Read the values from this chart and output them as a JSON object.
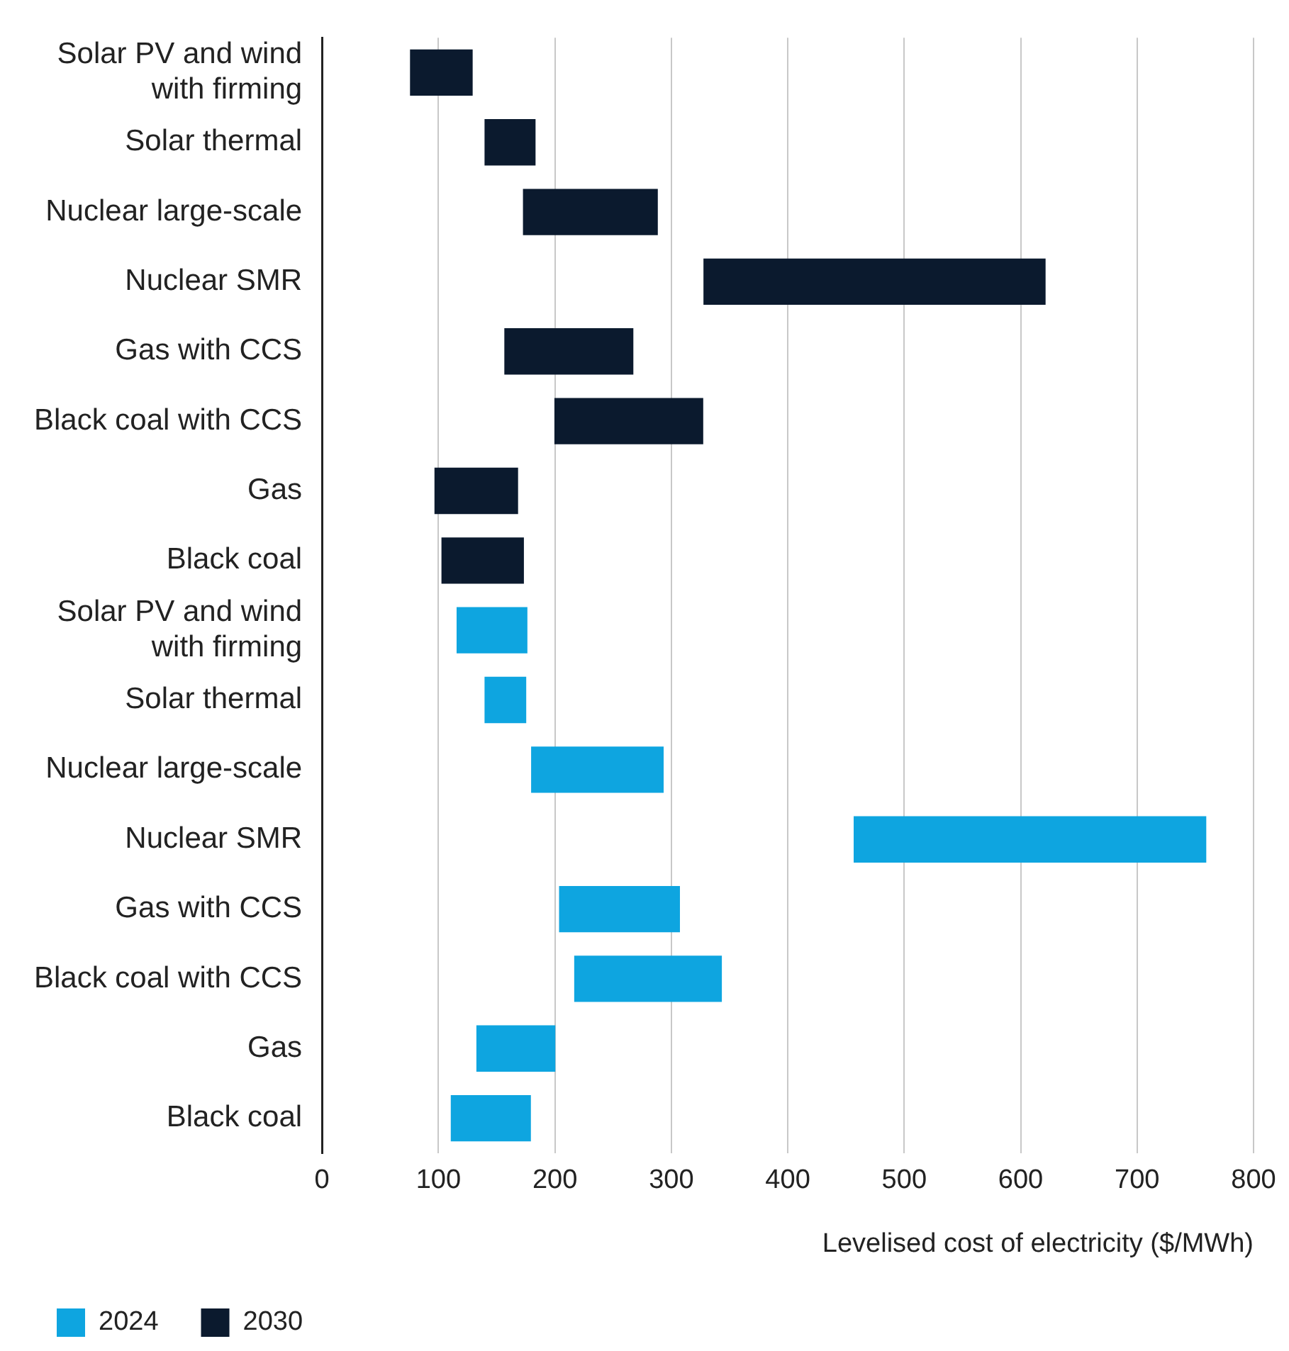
{
  "chart_data": {
    "type": "bar",
    "orientation": "horizontal",
    "xlabel": "Levelised cost of electricity ($/MWh)",
    "categories": [
      "Solar PV and wind with firming",
      "Solar thermal",
      "Nuclear large-scale",
      "Nuclear SMR",
      "Gas with CCS",
      "Black coal with CCS",
      "Gas",
      "Black coal",
      "Solar PV and wind with firming",
      "Solar thermal",
      "Nuclear large-scale",
      "Nuclear SMR",
      "Gas with CCS",
      "Black coal with CCS",
      "Gas",
      "Black coal"
    ],
    "series": [
      {
        "name": "2024",
        "color": "#0ea5e0",
        "base": [
          null,
          null,
          null,
          null,
          null,
          null,
          null,
          null,
          116,
          140,
          180,
          457,
          204,
          217,
          133,
          111
        ],
        "values": [
          null,
          null,
          null,
          null,
          null,
          null,
          null,
          null,
          60,
          35,
          113,
          302,
          103,
          126,
          67,
          68
        ]
      },
      {
        "name": "2030",
        "color": "#0b1a2e",
        "base": [
          76,
          140,
          173,
          328,
          157,
          200,
          97,
          103,
          null,
          null,
          null,
          null,
          null,
          null,
          null,
          null
        ],
        "values": [
          53,
          43,
          115,
          293,
          110,
          127,
          71,
          70,
          null,
          null,
          null,
          null,
          null,
          null,
          null,
          null
        ]
      }
    ],
    "xlim": [
      0,
      800
    ],
    "xticks": [
      0,
      100,
      200,
      300,
      400,
      500,
      600,
      700,
      800
    ],
    "grid": "x",
    "legend": "bottom left"
  }
}
